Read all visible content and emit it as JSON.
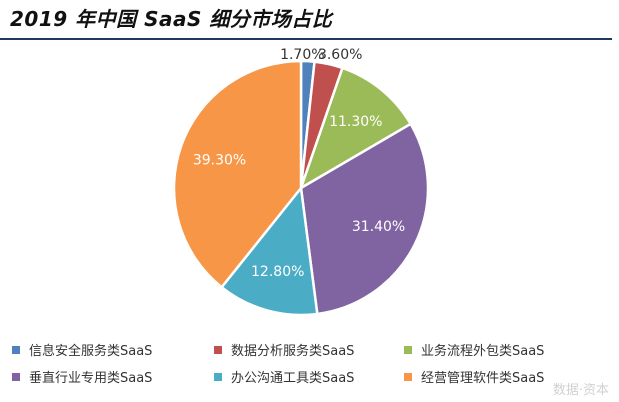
{
  "title": "2019 年中国 SaaS 细分市场占比",
  "watermark": "数据·资本",
  "chart_data": {
    "type": "pie",
    "title": "2019 年中国 SaaS 细分市场占比",
    "start_angle": "12 o'clock",
    "direction": "clockwise",
    "legend_position": "bottom",
    "slices": [
      {
        "label": "信息安全服务类SaaS",
        "value": 1.7,
        "value_label": "1.70%",
        "color": "#4f81bd"
      },
      {
        "label": "数据分析服务类SaaS",
        "value": 3.6,
        "value_label": "3.60%",
        "color": "#c0504d"
      },
      {
        "label": "业务流程外包类SaaS",
        "value": 11.3,
        "value_label": "11.30%",
        "color": "#9bbb59"
      },
      {
        "label": "垂直行业专用类SaaS",
        "value": 31.4,
        "value_label": "31.40%",
        "color": "#8064a2"
      },
      {
        "label": "办公沟通工具类SaaS",
        "value": 12.8,
        "value_label": "12.80%",
        "color": "#4bacc6"
      },
      {
        "label": "经营管理软件类SaaS",
        "value": 39.3,
        "value_label": "39.30%",
        "color": "#f79646"
      }
    ]
  }
}
